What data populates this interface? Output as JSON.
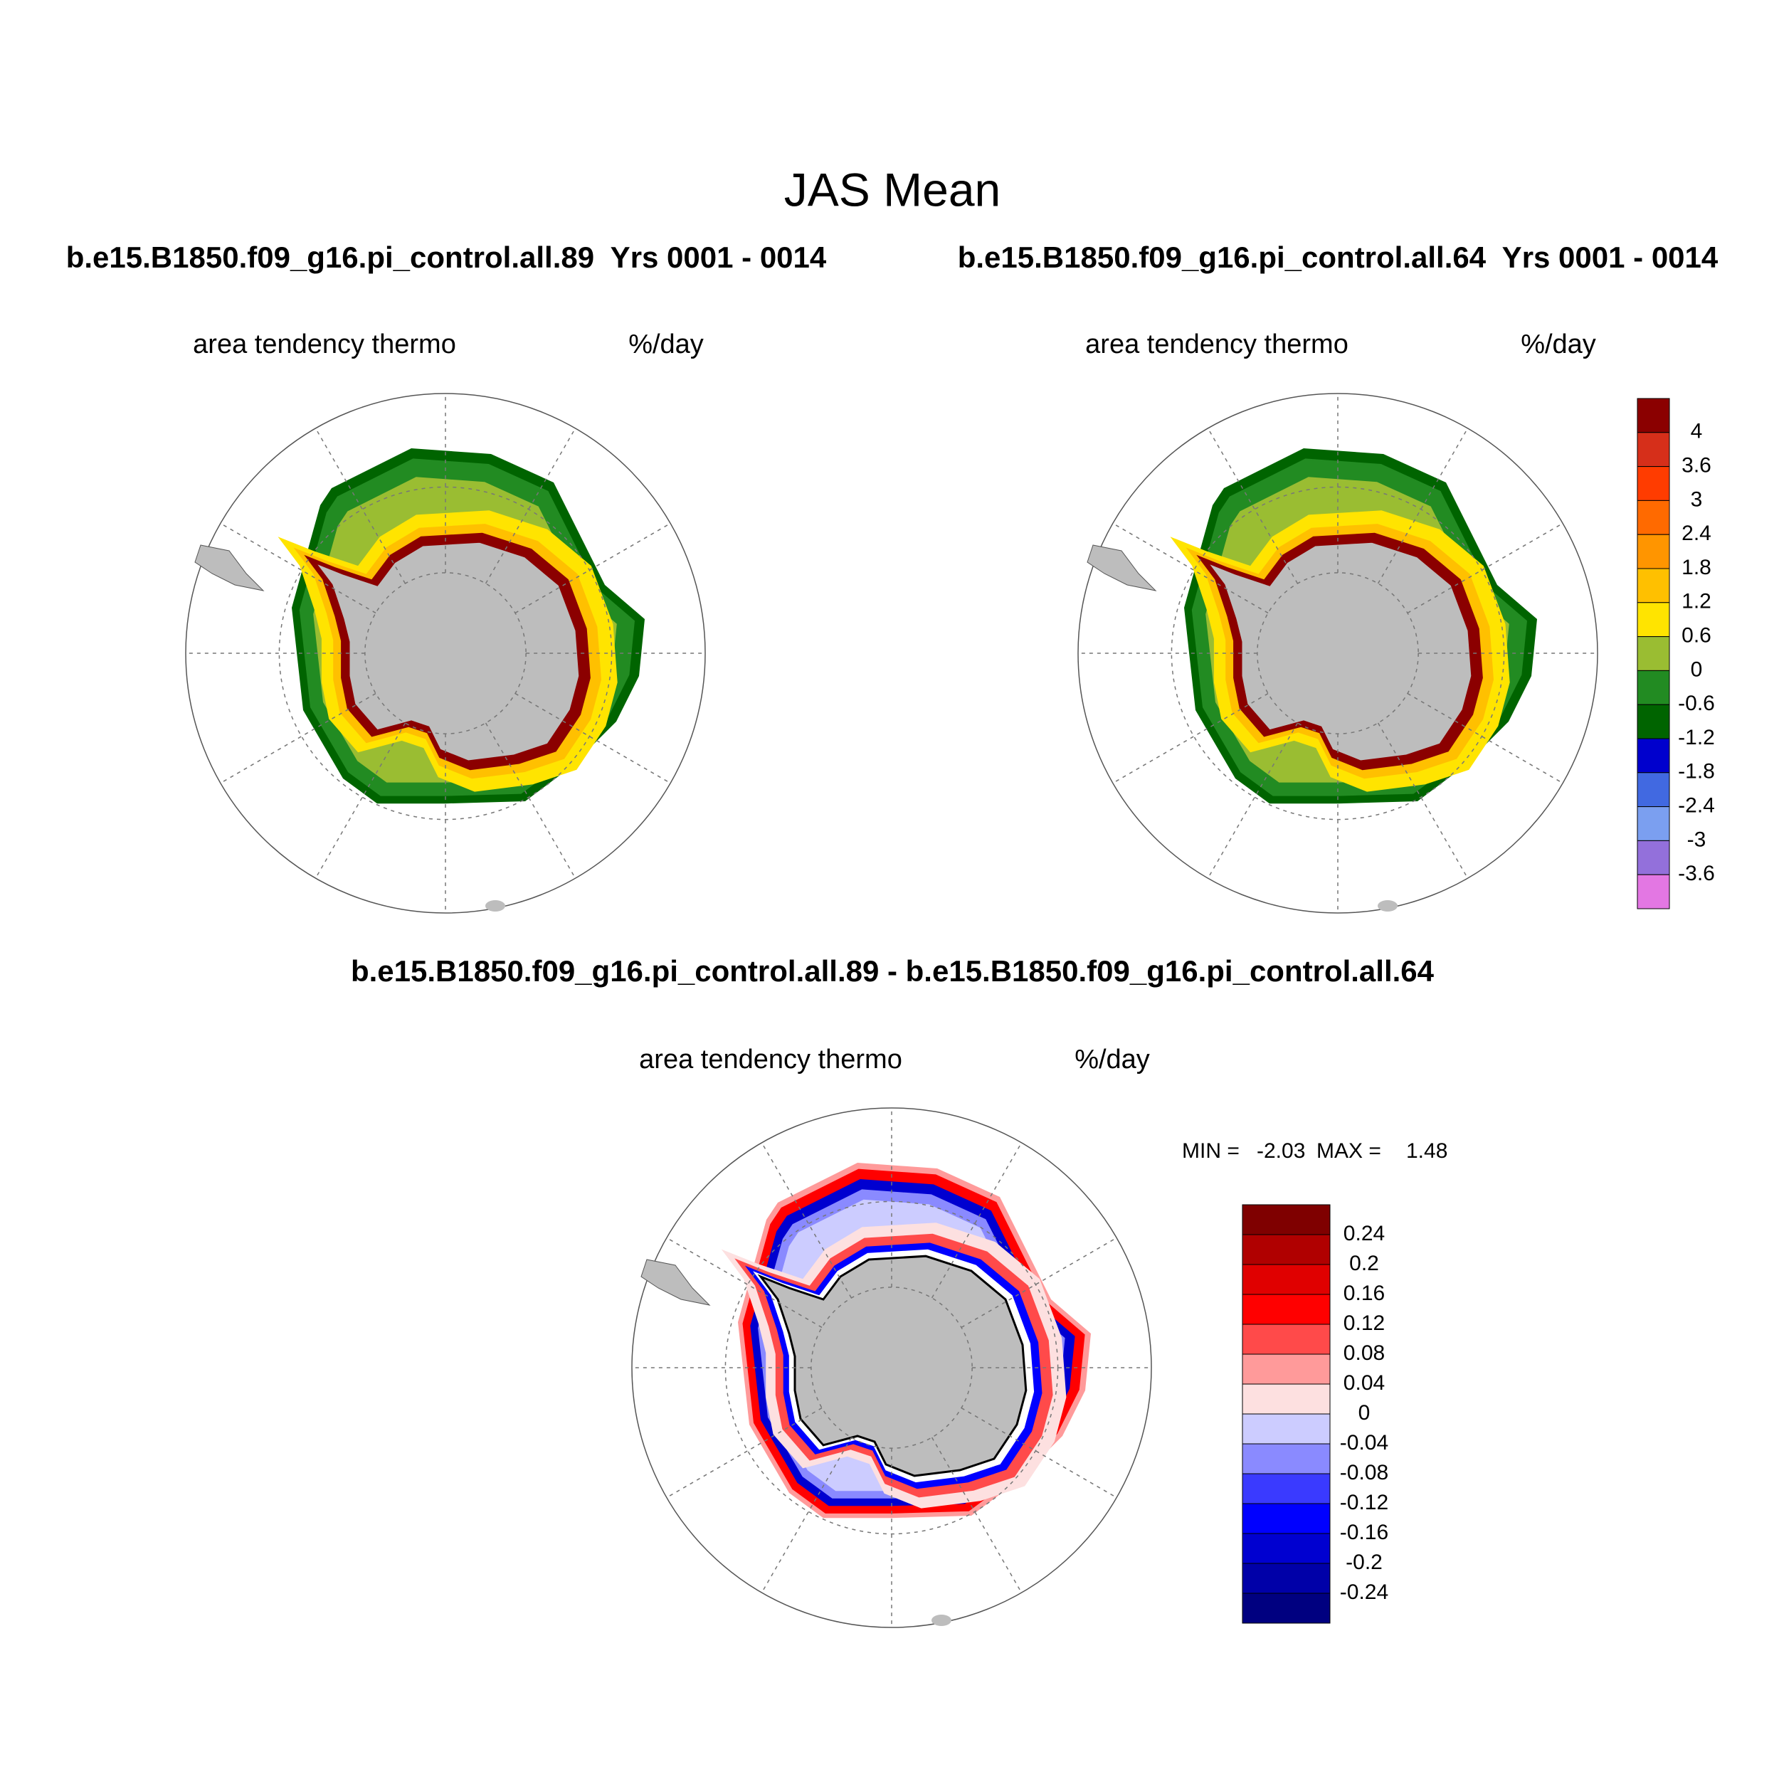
{
  "title": "JAS Mean",
  "panels": [
    {
      "subtitle": "b.e15.B1850.f09_g16.pi_control.all.89  Yrs 0001 - 0014",
      "left_label": "area tendency thermo",
      "right_label": "%/day"
    },
    {
      "subtitle": "b.e15.B1850.f09_g16.pi_control.all.64  Yrs 0001 - 0014",
      "left_label": "area tendency thermo",
      "right_label": "%/day"
    }
  ],
  "diff_panel": {
    "subtitle": "b.e15.B1850.f09_g16.pi_control.all.89 - b.e15.B1850.f09_g16.pi_control.all.64",
    "left_label": "area tendency thermo",
    "right_label": "%/day",
    "min_label": "MIN =",
    "min": -2.03,
    "max_label": "MAX =",
    "max": 1.48
  },
  "colorbar": {
    "labels": [
      4,
      3.6,
      3,
      2.4,
      1.8,
      1.2,
      0.6,
      0,
      -0.6,
      -1.2,
      -1.8,
      -2.4,
      -3,
      -3.6
    ],
    "colors": [
      "#8b0000",
      "#d62f1a",
      "#ff3c00",
      "#ff6a00",
      "#ff9500",
      "#ffc000",
      "#ffe400",
      "#9abd32",
      "#228b22",
      "#006400",
      "#0000cd",
      "#4169e1",
      "#7b9ff0",
      "#9370db",
      "#e377e3"
    ]
  },
  "diff_colorbar": {
    "labels": [
      0.24,
      0.2,
      0.16,
      0.12,
      0.08,
      0.04,
      0,
      -0.04,
      -0.08,
      -0.12,
      -0.16,
      -0.2,
      -0.24
    ],
    "colors": [
      "#7f0000",
      "#b00000",
      "#e00000",
      "#ff0000",
      "#ff4a4a",
      "#ff9a9a",
      "#fde0e0",
      "#ccccff",
      "#8a8aff",
      "#3a3aff",
      "#0000ff",
      "#0000d0",
      "#0000a8",
      "#000080"
    ]
  }
}
